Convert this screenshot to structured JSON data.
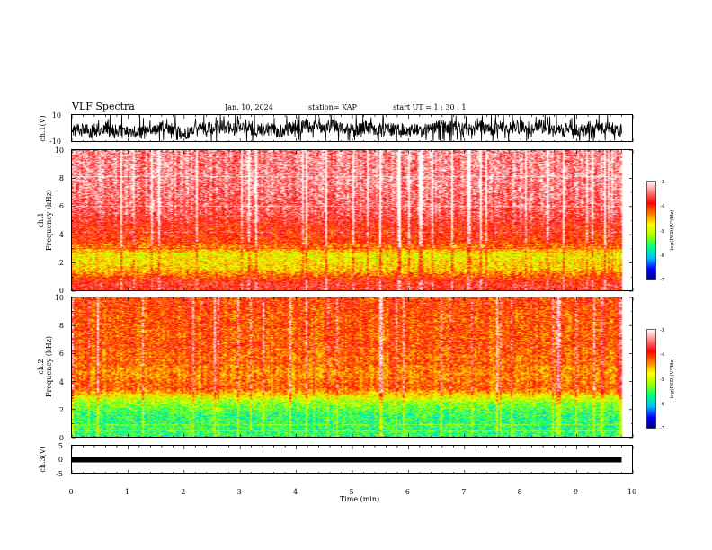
{
  "header": {
    "title": "VLF Spectra",
    "date": "Jan. 10, 2024",
    "station": "station= KAP",
    "start": "start  UT =   1 : 30 : 1"
  },
  "panels": {
    "ch1_wave": {
      "ylabel": "ch.1(V)",
      "ticks": [
        "10",
        "-10"
      ]
    },
    "ch1_spec": {
      "ylabel_top": "ch.1",
      "ylabel": "Frequency (kHz)",
      "ticks": [
        "10",
        "8",
        "6",
        "4",
        "2",
        "0"
      ]
    },
    "ch2_spec": {
      "ylabel_top": "ch.2",
      "ylabel": "Frequency (kHz)",
      "ticks": [
        "10",
        "8",
        "6",
        "4",
        "2",
        "0"
      ]
    },
    "ch3_wave": {
      "ylabel": "ch.3(V)",
      "ticks": [
        "5",
        "0",
        "-5"
      ]
    }
  },
  "colorbar": {
    "label": "log(PSD)(V²/Hz)",
    "ticks": [
      "-3",
      "-4",
      "-5",
      "-6",
      "-7"
    ],
    "colors": [
      "#000080",
      "#0000ff",
      "#00c0ff",
      "#00ff80",
      "#a0ff00",
      "#ffff00",
      "#ff8000",
      "#ff0000",
      "#ff8080",
      "#ffffff"
    ]
  },
  "xaxis": {
    "label": "Time (min)",
    "ticks": [
      "0",
      "1",
      "2",
      "3",
      "4",
      "5",
      "6",
      "7",
      "8",
      "9",
      "10"
    ]
  },
  "chart_data": [
    {
      "type": "line",
      "name": "ch.1 waveform",
      "ylabel": "ch.1(V)",
      "xlim": [
        0,
        10
      ],
      "ylim": [
        -10,
        10
      ],
      "data_end_min": 9.8
    },
    {
      "type": "heatmap",
      "title": "ch.1",
      "xlabel": "Time (min)",
      "ylabel": "Frequency (kHz)",
      "xlim": [
        0,
        10
      ],
      "ylim": [
        0,
        10
      ],
      "zlabel": "log(PSD)(V²/Hz)",
      "zlim": [
        -7,
        -3
      ],
      "freq_kHz": [
        0.5,
        1.5,
        2.5,
        3.5,
        4.5,
        5.5,
        6.5,
        7.5,
        8.5,
        9.5
      ],
      "typical_logpsd": [
        -3.8,
        -4.6,
        -4.8,
        -4.0,
        -3.9,
        -3.6,
        -3.5,
        -3.4,
        -3.4,
        -3.4
      ]
    },
    {
      "type": "heatmap",
      "title": "ch.2",
      "xlabel": "Time (min)",
      "ylabel": "Frequency (kHz)",
      "xlim": [
        0,
        10
      ],
      "ylim": [
        0,
        10
      ],
      "zlabel": "log(PSD)(V²/Hz)",
      "zlim": [
        -7,
        -3
      ],
      "freq_kHz": [
        0.5,
        1.5,
        2.5,
        3.5,
        4.5,
        5.5,
        6.5,
        7.5,
        8.5,
        9.5
      ],
      "typical_logpsd": [
        -5.6,
        -5.6,
        -5.2,
        -4.2,
        -4.4,
        -4.3,
        -4.2,
        -4.2,
        -4.2,
        -4.1
      ]
    },
    {
      "type": "line",
      "name": "ch.3 waveform",
      "ylabel": "ch.3(V)",
      "xlim": [
        0,
        10
      ],
      "ylim": [
        -5,
        5
      ],
      "constant_level_V": 0,
      "data_end_min": 9.8
    }
  ]
}
